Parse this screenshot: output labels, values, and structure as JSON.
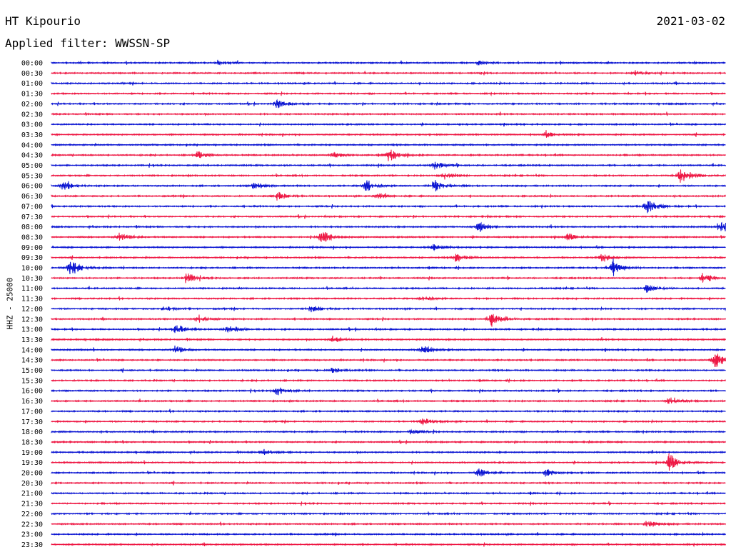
{
  "header": {
    "station": "HT Kipourio",
    "date": "2021-03-02",
    "filter": "Applied filter: WWSSN-SP"
  },
  "colors": {
    "blue": "#0a14d2",
    "red": "#ee1844",
    "background": "#ffffff"
  },
  "chart_data": {
    "type": "line",
    "title": "HT Kipourio",
    "subtitle": "Applied filter: WWSSN-SP",
    "ylabel": "HHZ - 25000",
    "xlabel": "",
    "grid": false,
    "legend": "none",
    "line_colors": [
      "#0a14d2",
      "#ee1844"
    ],
    "rows": [
      "00:00",
      "00:30",
      "01:00",
      "01:30",
      "02:00",
      "02:30",
      "03:00",
      "03:30",
      "04:00",
      "04:30",
      "05:00",
      "05:30",
      "06:00",
      "06:30",
      "07:00",
      "07:30",
      "08:00",
      "08:30",
      "09:00",
      "09:30",
      "10:00",
      "10:30",
      "11:00",
      "11:30",
      "12:00",
      "12:30",
      "13:00",
      "13:30",
      "14:00",
      "14:30",
      "15:00",
      "15:30",
      "16:00",
      "16:30",
      "17:00",
      "17:30",
      "18:00",
      "18:30",
      "19:00",
      "19:30",
      "20:00",
      "20:30",
      "21:00",
      "21:30",
      "22:00",
      "22:30",
      "23:00",
      "23:30"
    ],
    "events": [
      {
        "row": "00:00",
        "minute": 7.5,
        "amplitude": 0.2
      },
      {
        "row": "00:00",
        "minute": 19.0,
        "amplitude": 0.2
      },
      {
        "row": "00:30",
        "minute": 26.0,
        "amplitude": 0.3
      },
      {
        "row": "02:00",
        "minute": 10.0,
        "amplitude": 0.5
      },
      {
        "row": "03:30",
        "minute": 22.0,
        "amplitude": 0.3
      },
      {
        "row": "04:30",
        "minute": 6.5,
        "amplitude": 0.4
      },
      {
        "row": "04:30",
        "minute": 12.5,
        "amplitude": 0.35
      },
      {
        "row": "04:30",
        "minute": 15.0,
        "amplitude": 0.7
      },
      {
        "row": "05:00",
        "minute": 17.0,
        "amplitude": 0.5
      },
      {
        "row": "05:30",
        "minute": 17.5,
        "amplitude": 0.4
      },
      {
        "row": "05:30",
        "minute": 28.0,
        "amplitude": 1.0
      },
      {
        "row": "06:00",
        "minute": 0.5,
        "amplitude": 0.5
      },
      {
        "row": "06:00",
        "minute": 9.0,
        "amplitude": 0.4
      },
      {
        "row": "06:00",
        "minute": 14.0,
        "amplitude": 0.8
      },
      {
        "row": "06:00",
        "minute": 17.0,
        "amplitude": 0.7
      },
      {
        "row": "06:30",
        "minute": 10.0,
        "amplitude": 0.6
      },
      {
        "row": "06:30",
        "minute": 14.5,
        "amplitude": 0.3
      },
      {
        "row": "07:00",
        "minute": 26.5,
        "amplitude": 1.0
      },
      {
        "row": "08:00",
        "minute": 19.0,
        "amplitude": 0.6
      },
      {
        "row": "08:00",
        "minute": 29.8,
        "amplitude": 0.7
      },
      {
        "row": "08:30",
        "minute": 3.0,
        "amplitude": 0.5
      },
      {
        "row": "08:30",
        "minute": 12.0,
        "amplitude": 0.8
      },
      {
        "row": "08:30",
        "minute": 23.0,
        "amplitude": 0.4
      },
      {
        "row": "09:00",
        "minute": 17.0,
        "amplitude": 0.4
      },
      {
        "row": "09:30",
        "minute": 18.0,
        "amplitude": 0.5
      },
      {
        "row": "09:30",
        "minute": 24.5,
        "amplitude": 0.5
      },
      {
        "row": "10:00",
        "minute": 0.8,
        "amplitude": 1.0
      },
      {
        "row": "10:00",
        "minute": 25.0,
        "amplitude": 0.9
      },
      {
        "row": "10:30",
        "minute": 6.0,
        "amplitude": 0.6
      },
      {
        "row": "10:30",
        "minute": 29.0,
        "amplitude": 0.6
      },
      {
        "row": "11:00",
        "minute": 26.5,
        "amplitude": 0.4
      },
      {
        "row": "11:30",
        "minute": 16.5,
        "amplitude": 0.4
      },
      {
        "row": "12:00",
        "minute": 5.0,
        "amplitude": 0.3
      },
      {
        "row": "12:00",
        "minute": 11.5,
        "amplitude": 0.4
      },
      {
        "row": "12:30",
        "minute": 6.5,
        "amplitude": 0.5
      },
      {
        "row": "12:30",
        "minute": 19.5,
        "amplitude": 1.0
      },
      {
        "row": "13:00",
        "minute": 5.5,
        "amplitude": 0.6
      },
      {
        "row": "13:00",
        "minute": 7.8,
        "amplitude": 0.6
      },
      {
        "row": "13:30",
        "minute": 12.5,
        "amplitude": 0.4
      },
      {
        "row": "14:00",
        "minute": 5.5,
        "amplitude": 0.4
      },
      {
        "row": "14:00",
        "minute": 16.5,
        "amplitude": 0.5
      },
      {
        "row": "14:30",
        "minute": 29.5,
        "amplitude": 1.0
      },
      {
        "row": "15:00",
        "minute": 12.5,
        "amplitude": 0.3
      },
      {
        "row": "16:00",
        "minute": 10.0,
        "amplitude": 0.5
      },
      {
        "row": "16:30",
        "minute": 27.5,
        "amplitude": 0.6
      },
      {
        "row": "17:30",
        "minute": 16.5,
        "amplitude": 0.5
      },
      {
        "row": "18:00",
        "minute": 16.0,
        "amplitude": 0.3
      },
      {
        "row": "19:00",
        "minute": 9.5,
        "amplitude": 0.4
      },
      {
        "row": "19:30",
        "minute": 27.5,
        "amplitude": 1.0
      },
      {
        "row": "20:00",
        "minute": 19.0,
        "amplitude": 0.5
      },
      {
        "row": "20:00",
        "minute": 22.0,
        "amplitude": 0.4
      },
      {
        "row": "22:30",
        "minute": 26.5,
        "amplitude": 0.5
      }
    ]
  }
}
